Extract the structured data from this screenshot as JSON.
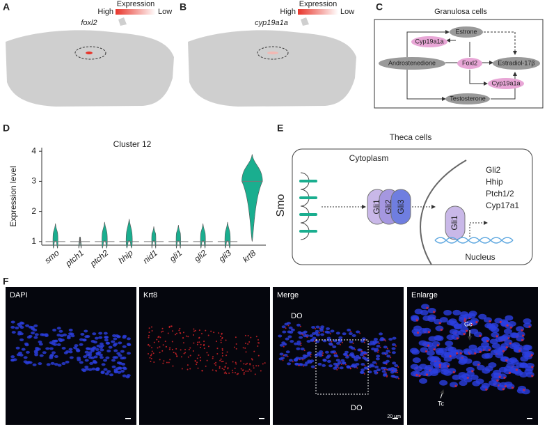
{
  "panels": {
    "A": {
      "label": "A",
      "legend_title": "Expression",
      "legend_high": "High",
      "legend_low": "Low",
      "gene": "foxl2"
    },
    "B": {
      "label": "B",
      "legend_title": "Expression",
      "legend_high": "High",
      "legend_low": "Low",
      "gene": "cyp19a1a"
    },
    "C": {
      "label": "C",
      "title": "Granulosa cells",
      "nodes": [
        "Estrone",
        "Cyp19a1a",
        "Androstenedione",
        "Foxl2",
        "Estradiol-17β",
        "Cyp19a1a",
        "Testosterone"
      ]
    },
    "D": {
      "label": "D"
    },
    "E": {
      "label": "E",
      "title": "Theca cells",
      "cytoplasm": "Cytoplasm",
      "receptor": "Smo",
      "complex": [
        "Gli1",
        "Gli2",
        "Gli3"
      ],
      "nuclear_factor": "Gli1",
      "targets": [
        "Gli2",
        "Hhip",
        "Ptch1/2",
        "Cyp17a1"
      ],
      "nucleus": "Nucleus"
    },
    "F": {
      "label": "F",
      "images": [
        {
          "title": "DAPI"
        },
        {
          "title": "Krt8"
        },
        {
          "title": "Merge",
          "annotations": [
            "DO",
            "DO"
          ],
          "scale_bar": "20 μm"
        },
        {
          "title": "Enlarge",
          "annotations": [
            "Gc",
            "Tc"
          ]
        }
      ]
    }
  },
  "chart_data": {
    "type": "violin",
    "title": "Cluster 12",
    "y_label": "Expression level",
    "categories": [
      "smo",
      "ptch1",
      "ptch2",
      "hhip",
      "nid1",
      "gli1",
      "gli2",
      "gli3",
      "krt8"
    ],
    "min": [
      1,
      1,
      1,
      1,
      1,
      1,
      1,
      1,
      1
    ],
    "median": [
      1,
      1,
      1,
      1,
      1,
      1,
      1,
      1,
      3
    ],
    "max": [
      1.6,
      1.05,
      1.65,
      1.75,
      1.5,
      1.55,
      1.6,
      1.65,
      3.9
    ],
    "color": "#1aae8f",
    "ylim": [
      0.88,
      4.12
    ],
    "yticks": [
      1,
      2,
      3,
      4
    ]
  }
}
